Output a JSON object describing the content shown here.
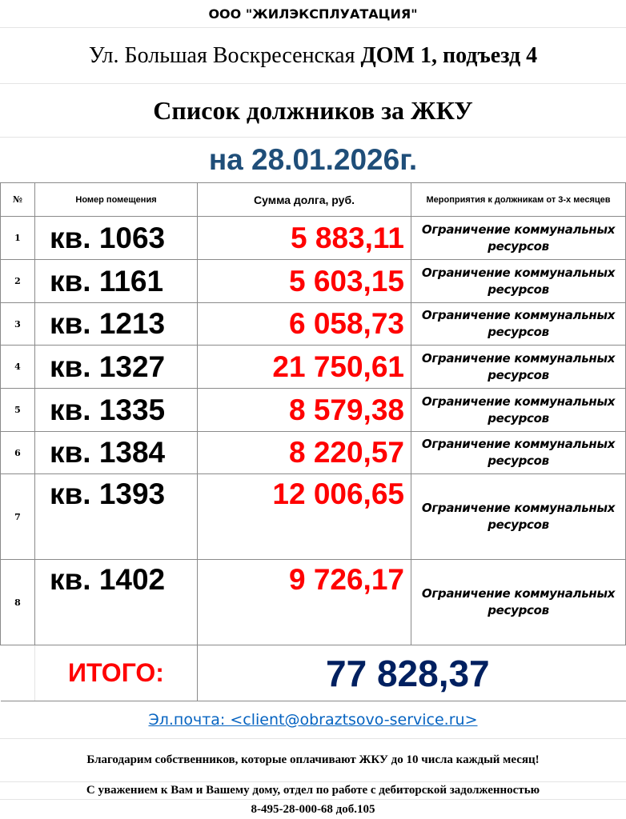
{
  "company": "ООО \"ЖИЛЭКСПЛУАТАЦИЯ\"",
  "address": {
    "street": "Ул. Большая Воскресенская",
    "house": "ДОМ 1, подъезд 4"
  },
  "title": "Список должников за ЖКУ",
  "date": "на 28.01.2026г.",
  "table": {
    "headers": [
      "№",
      "Номер помещения",
      "Сумма долга, руб.",
      "Мероприятия к должникам от 3-х месяцев"
    ],
    "rows": [
      {
        "n": "1",
        "apt": "кв. 1063",
        "amount": "5 883,11",
        "action": "Ограничение коммунальных ресурсов"
      },
      {
        "n": "2",
        "apt": "кв. 1161",
        "amount": "5 603,15",
        "action": "Ограничение коммунальных ресурсов"
      },
      {
        "n": "3",
        "apt": "кв. 1213",
        "amount": "6 058,73",
        "action": "Ограничение коммунальных ресурсов"
      },
      {
        "n": "4",
        "apt": "кв. 1327",
        "amount": "21 750,61",
        "action": "Ограничение коммунальных ресурсов"
      },
      {
        "n": "5",
        "apt": "кв. 1335",
        "amount": "8 579,38",
        "action": "Ограничение коммунальных ресурсов"
      },
      {
        "n": "6",
        "apt": "кв. 1384",
        "amount": "8 220,57",
        "action": "Ограничение коммунальных ресурсов"
      },
      {
        "n": "7",
        "apt": "кв. 1393",
        "amount": "12 006,65",
        "action": "Ограничение коммунальных ресурсов"
      },
      {
        "n": "8",
        "apt": "кв. 1402",
        "amount": "9 726,17",
        "action": "Ограничение коммунальных ресурсов"
      }
    ],
    "total_label": "ИТОГО:",
    "total": "77 828,37"
  },
  "email": "Эл.почта: <client@obraztsovo-service.ru>",
  "thanks": "Благодарим собственников, которые оплачивают ЖКУ до 10 числа каждый месяц!",
  "regards": "С уважением к Вам и Вашему дому, отдел по работе с дебиторской задолженностью",
  "phone": "8-495-28-000-68 доб.105",
  "colors": {
    "amount": "#ff0000",
    "date": "#1f4e79",
    "total": "#002060",
    "link": "#0563c1"
  }
}
